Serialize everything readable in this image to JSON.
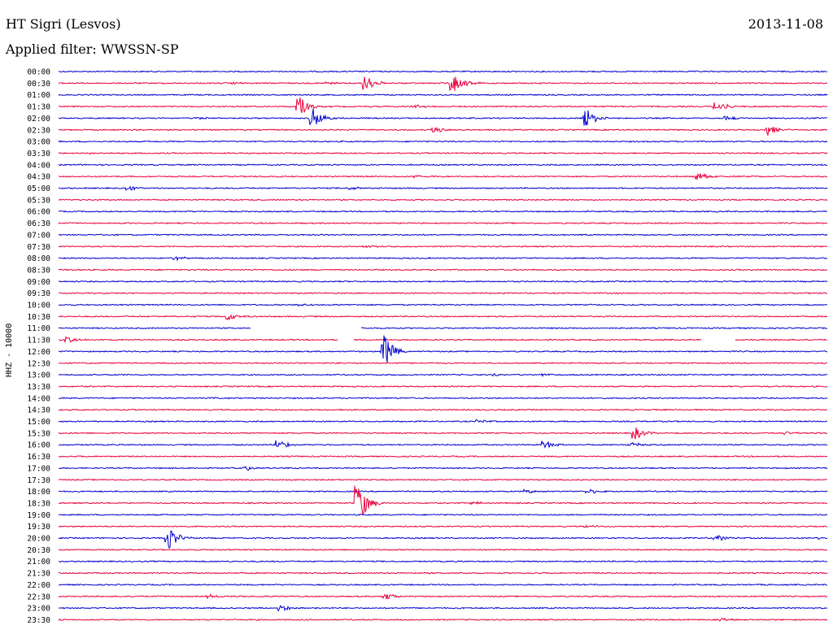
{
  "header": {
    "station": "HT Sigri (Lesvos)",
    "date": "2013-11-08",
    "filter": "Applied filter: WWSSN-SP"
  },
  "chart_data": {
    "type": "line",
    "title": "HT Sigri (Lesvos)",
    "subtitle": "Applied filter: WWSSN-SP",
    "ylabel": "HHZ - 10000",
    "colors": [
      "#0000cc",
      "#e8003c"
    ],
    "row_labels": [
      "00:00",
      "00:30",
      "01:00",
      "01:30",
      "02:00",
      "02:30",
      "03:00",
      "03:30",
      "04:00",
      "04:30",
      "05:00",
      "05:30",
      "06:00",
      "06:30",
      "07:00",
      "07:30",
      "08:00",
      "08:30",
      "09:00",
      "09:30",
      "10:00",
      "10:30",
      "11:00",
      "11:30",
      "12:00",
      "12:30",
      "13:00",
      "13:30",
      "14:00",
      "14:30",
      "15:00",
      "15:30",
      "16:00",
      "16:30",
      "17:00",
      "17:30",
      "18:00",
      "18:30",
      "19:00",
      "19:30",
      "20:00",
      "20:30",
      "21:00",
      "21:30",
      "22:00",
      "22:30",
      "23:00",
      "23:30"
    ],
    "x_unit": "minutes after row start",
    "x_range": [
      0,
      30
    ],
    "gaps": [
      {
        "row": 22,
        "x": [
          7.5,
          11.8
        ]
      },
      {
        "row": 23,
        "x": [
          10.9,
          11.5
        ]
      },
      {
        "row": 23,
        "x": [
          25.1,
          26.4
        ]
      }
    ],
    "events": [
      {
        "row": 1,
        "x": 11.9,
        "amp": 14
      },
      {
        "row": 1,
        "x": 15.3,
        "amp": 22
      },
      {
        "row": 1,
        "x": 10.4,
        "amp": 3
      },
      {
        "row": 1,
        "x": 6.8,
        "amp": 2
      },
      {
        "row": 3,
        "x": 9.3,
        "amp": 18
      },
      {
        "row": 3,
        "x": 13.8,
        "amp": 3
      },
      {
        "row": 3,
        "x": 25.6,
        "amp": 9
      },
      {
        "row": 4,
        "x": 9.8,
        "amp": 20
      },
      {
        "row": 4,
        "x": 20.5,
        "amp": 19
      },
      {
        "row": 4,
        "x": 26.0,
        "amp": 4
      },
      {
        "row": 4,
        "x": 5.4,
        "amp": 2
      },
      {
        "row": 5,
        "x": 14.6,
        "amp": 6
      },
      {
        "row": 5,
        "x": 27.6,
        "amp": 10
      },
      {
        "row": 7,
        "x": 1.2,
        "amp": 2
      },
      {
        "row": 9,
        "x": 13.9,
        "amp": 3
      },
      {
        "row": 9,
        "x": 24.9,
        "amp": 8
      },
      {
        "row": 10,
        "x": 2.6,
        "amp": 5
      },
      {
        "row": 10,
        "x": 11.3,
        "amp": 3
      },
      {
        "row": 15,
        "x": 11.9,
        "amp": 3
      },
      {
        "row": 16,
        "x": 4.5,
        "amp": 3
      },
      {
        "row": 20,
        "x": 9.4,
        "amp": 3
      },
      {
        "row": 21,
        "x": 6.5,
        "amp": 8
      },
      {
        "row": 23,
        "x": 0.3,
        "amp": 5
      },
      {
        "row": 24,
        "x": 12.6,
        "amp": 30
      },
      {
        "row": 26,
        "x": 17.0,
        "amp": 2
      },
      {
        "row": 26,
        "x": 18.9,
        "amp": 2
      },
      {
        "row": 28,
        "x": 6.0,
        "amp": 2
      },
      {
        "row": 30,
        "x": 16.3,
        "amp": 3
      },
      {
        "row": 31,
        "x": 22.4,
        "amp": 11
      },
      {
        "row": 31,
        "x": 28.3,
        "amp": 3
      },
      {
        "row": 32,
        "x": 8.5,
        "amp": 8
      },
      {
        "row": 32,
        "x": 18.9,
        "amp": 7
      },
      {
        "row": 32,
        "x": 22.3,
        "amp": 4
      },
      {
        "row": 34,
        "x": 7.2,
        "amp": 4
      },
      {
        "row": 36,
        "x": 18.2,
        "amp": 3
      },
      {
        "row": 36,
        "x": 20.6,
        "amp": 4
      },
      {
        "row": 37,
        "x": 11.6,
        "amp": 38
      },
      {
        "row": 37,
        "x": 16.1,
        "amp": 3
      },
      {
        "row": 39,
        "x": 20.5,
        "amp": 3
      },
      {
        "row": 40,
        "x": 4.2,
        "amp": 20
      },
      {
        "row": 40,
        "x": 25.6,
        "amp": 5
      },
      {
        "row": 40,
        "x": 29.5,
        "amp": 2
      },
      {
        "row": 45,
        "x": 5.8,
        "amp": 3
      },
      {
        "row": 45,
        "x": 12.7,
        "amp": 6
      },
      {
        "row": 46,
        "x": 8.6,
        "amp": 6
      },
      {
        "row": 47,
        "x": 25.8,
        "amp": 3
      }
    ]
  }
}
